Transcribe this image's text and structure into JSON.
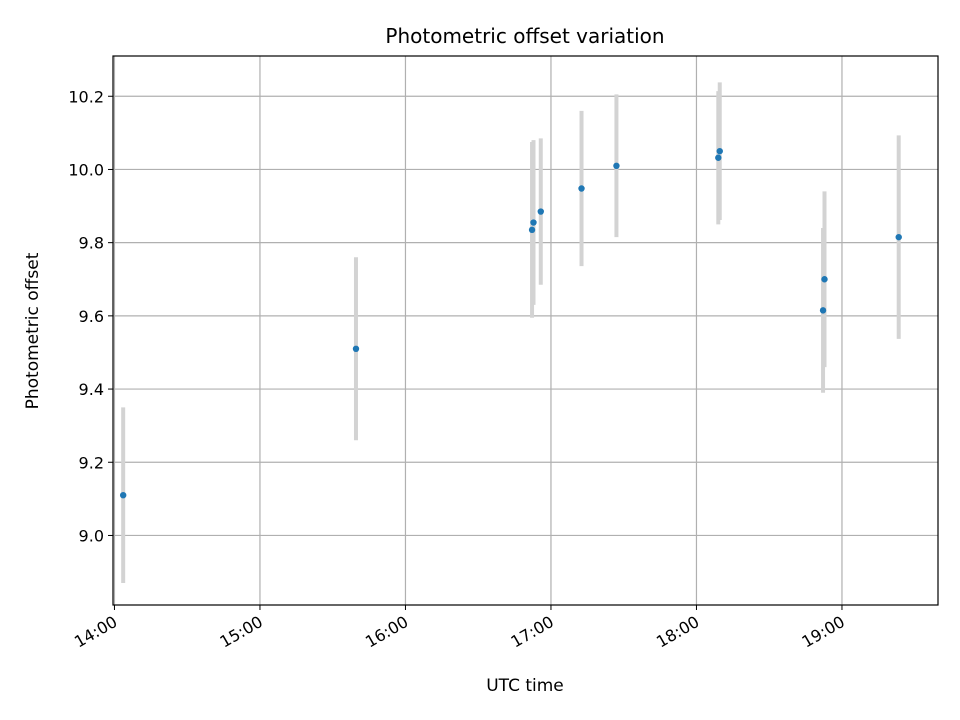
{
  "chart_data": {
    "type": "scatter",
    "title": "Photometric offset variation",
    "xlabel": "UTC time",
    "ylabel": "Photometric offset",
    "x_ticks": [
      "14:00",
      "15:00",
      "16:00",
      "17:00",
      "18:00",
      "19:00"
    ],
    "x_tick_hours": [
      14,
      15,
      16,
      17,
      18,
      19
    ],
    "y_ticks": [
      "9.0",
      "9.2",
      "9.4",
      "9.6",
      "9.8",
      "10.0",
      "10.2"
    ],
    "y_tick_values": [
      9.0,
      9.2,
      9.4,
      9.6,
      9.8,
      10.0,
      10.2
    ],
    "xlim_hours": [
      13.99,
      19.66
    ],
    "ylim": [
      8.81,
      10.31
    ],
    "grid": true,
    "colors": {
      "points": "#1f77b4",
      "errorbars": "#d3d3d3",
      "grid": "#b0b0b0"
    },
    "points": [
      {
        "t": 14.06,
        "y": 9.11,
        "err": 0.24
      },
      {
        "t": 15.66,
        "y": 9.51,
        "err": 0.25
      },
      {
        "t": 16.87,
        "y": 9.835,
        "err": 0.24
      },
      {
        "t": 16.88,
        "y": 9.855,
        "err": 0.225
      },
      {
        "t": 16.93,
        "y": 9.885,
        "err": 0.2
      },
      {
        "t": 17.21,
        "y": 9.948,
        "err": 0.212
      },
      {
        "t": 17.45,
        "y": 10.01,
        "err": 0.195
      },
      {
        "t": 18.15,
        "y": 10.032,
        "err": 0.182
      },
      {
        "t": 18.16,
        "y": 10.05,
        "err": 0.188
      },
      {
        "t": 18.87,
        "y": 9.615,
        "err": 0.225
      },
      {
        "t": 18.88,
        "y": 9.7,
        "err": 0.24
      },
      {
        "t": 19.39,
        "y": 9.815,
        "err": 0.278
      }
    ]
  }
}
